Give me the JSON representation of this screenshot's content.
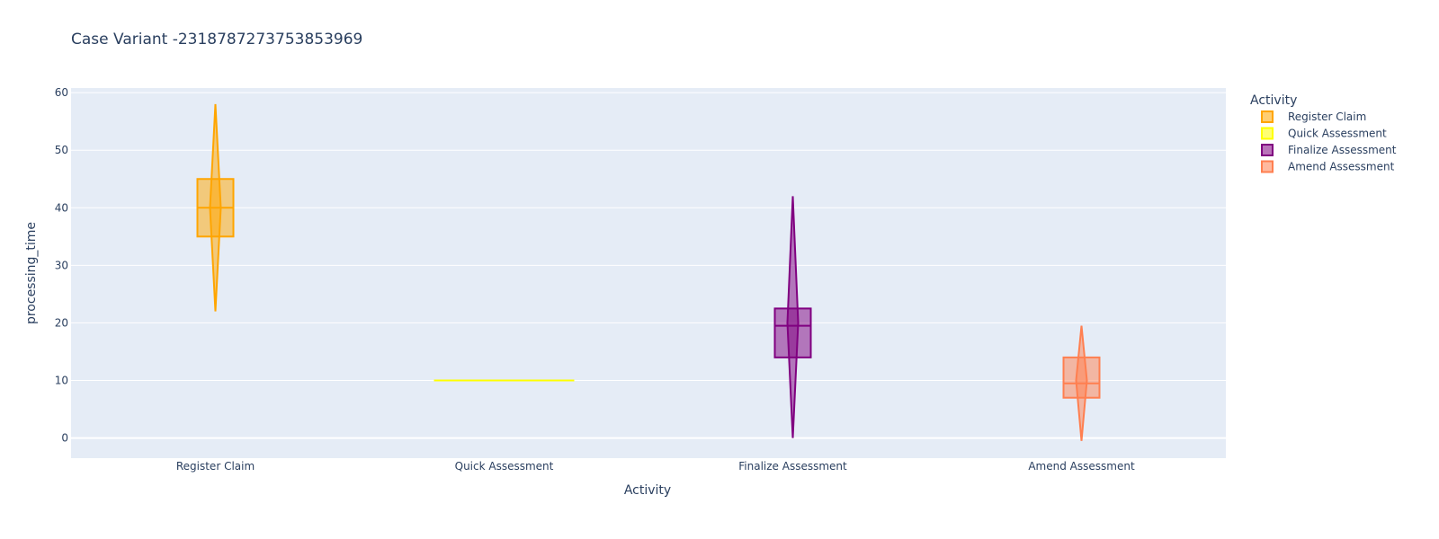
{
  "chart_data": {
    "type": "violin",
    "title": "Case Variant -2318787273753853969",
    "xlabel": "Activity",
    "ylabel": "processing_time",
    "ylim": [
      -3.5,
      60.8
    ],
    "yticks": [
      0,
      10,
      20,
      30,
      40,
      50,
      60
    ],
    "grid": true,
    "legend_title": "Activity",
    "legend_position": "right",
    "categories": [
      "Register Claim",
      "Quick Assessment",
      "Finalize Assessment",
      "Amend Assessment"
    ],
    "series": [
      {
        "name": "Register Claim",
        "color": "#ffa500",
        "min": 22,
        "q1": 35,
        "median": 40,
        "q3": 45,
        "max": 58,
        "peak": 40
      },
      {
        "name": "Quick Assessment",
        "color": "#ffff00",
        "min": 10,
        "q1": 10,
        "median": 10,
        "q3": 10,
        "max": 10,
        "peak": 10
      },
      {
        "name": "Finalize Assessment",
        "color": "#800080",
        "min": 0,
        "q1": 14,
        "median": 19.5,
        "q3": 22.5,
        "max": 42,
        "peak": 20
      },
      {
        "name": "Amend Assessment",
        "color": "#ff7f50",
        "min": -0.5,
        "q1": 7,
        "median": 9.5,
        "q3": 14,
        "max": 19.5,
        "peak": 10
      }
    ]
  }
}
